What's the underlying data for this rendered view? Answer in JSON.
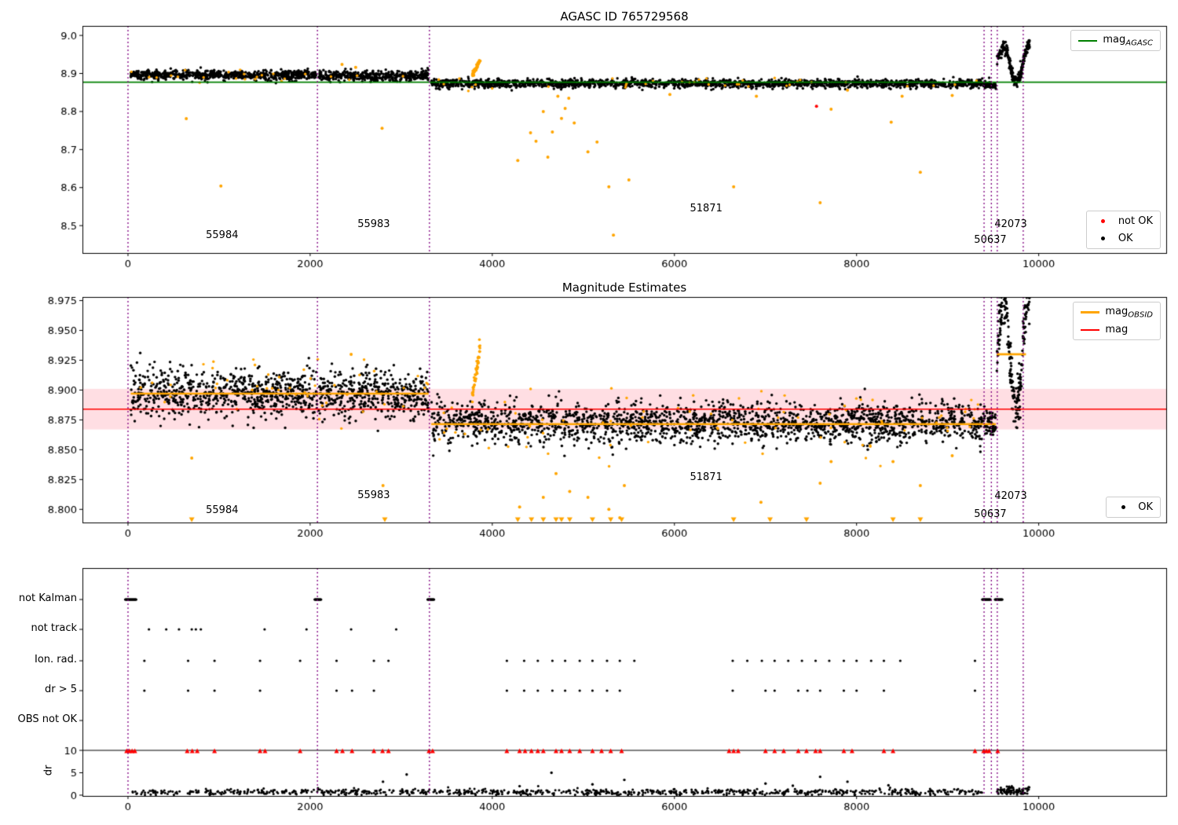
{
  "titles": {
    "top": "AGASC ID 765729568",
    "middle": "Magnitude Estimates"
  },
  "legends": {
    "mag_agasc": {
      "prefix": "mag",
      "sub": "AGASC"
    },
    "ok_notok": {
      "not_ok": "not OK",
      "ok": "OK"
    },
    "mag_obsid": {
      "prefix": "mag",
      "sub": "OBSID",
      "mag": "mag"
    },
    "ok_only": {
      "ok": "OK"
    }
  },
  "colors": {
    "ok": "#000000",
    "not_ok": "#ff0000",
    "flagged": "#ffa500",
    "mag_agasc_line": "#008000",
    "mag_line": "#ff0000",
    "mag_obsid_line": "#ffa500",
    "obsid_boundary": "#800080",
    "mag_band_fill": "rgba(255,0,40,0.13)"
  },
  "obsids": [
    "55984",
    "55983",
    "51871",
    "50637",
    "42073"
  ],
  "chart_data": [
    {
      "type": "scatter",
      "title": "AGASC ID 765729568",
      "xlim": [
        -500,
        11400
      ],
      "ylim": [
        8.428,
        9.025
      ],
      "xticks": [
        0,
        2000,
        4000,
        6000,
        8000,
        10000
      ],
      "yticks": [
        8.5,
        8.6,
        8.7,
        8.8,
        8.9,
        9.0
      ],
      "ytick_decimals": 1,
      "mag_agasc": 8.877,
      "vlines": [
        0,
        2080,
        3310,
        9400,
        9480,
        9545,
        9830
      ],
      "series": {
        "ok_segments": [
          {
            "x0": 30,
            "x1": 2075,
            "n": 700,
            "mean": 8.896,
            "sd": 0.0065
          },
          {
            "x0": 2090,
            "x1": 3300,
            "n": 420,
            "mean": 8.894,
            "sd": 0.0065
          },
          {
            "x0": 3330,
            "x1": 9395,
            "n": 1900,
            "mean": 8.8735,
            "sd": 0.0055
          },
          {
            "x0": 9400,
            "x1": 9530,
            "n": 60,
            "mean": 8.871,
            "sd": 0.005
          },
          {
            "x0": 9540,
            "x1": 9900,
            "n": 220,
            "mean": 8.925,
            "sd": 0.009,
            "wave_amp": 0.045,
            "wave_period": 45
          }
        ],
        "flagged_sprinkle": {
          "x0": 30,
          "x1": 9395,
          "n": 60,
          "sd": 0.009
        },
        "flagged_cluster": {
          "x0": 3780,
          "x1": 3870,
          "n": 45,
          "y0": 8.893,
          "y1": 8.937
        },
        "flagged_outliers": [
          [
            640,
            8.781
          ],
          [
            1020,
            8.604
          ],
          [
            2350,
            8.924
          ],
          [
            2500,
            8.916
          ],
          [
            2790,
            8.756
          ],
          [
            4280,
            8.671
          ],
          [
            4420,
            8.744
          ],
          [
            4480,
            8.722
          ],
          [
            4560,
            8.8
          ],
          [
            4610,
            8.68
          ],
          [
            4660,
            8.746
          ],
          [
            4720,
            8.84
          ],
          [
            4760,
            8.782
          ],
          [
            4800,
            8.808
          ],
          [
            4840,
            8.835
          ],
          [
            4900,
            8.77
          ],
          [
            5050,
            8.694
          ],
          [
            5150,
            8.72
          ],
          [
            5280,
            8.602
          ],
          [
            5330,
            8.475
          ],
          [
            5500,
            8.62
          ],
          [
            5950,
            8.845
          ],
          [
            6650,
            8.602
          ],
          [
            6900,
            8.84
          ],
          [
            7600,
            8.56
          ],
          [
            7720,
            8.806
          ],
          [
            7900,
            8.856
          ],
          [
            8380,
            8.772
          ],
          [
            8500,
            8.84
          ],
          [
            8700,
            8.64
          ],
          [
            9050,
            8.842
          ]
        ],
        "not_ok_points": [
          [
            7560,
            8.814
          ]
        ]
      },
      "annotations": [
        {
          "text": "55984",
          "x": 855,
          "y": 8.465
        },
        {
          "text": "55983",
          "x": 2520,
          "y": 8.494
        },
        {
          "text": "51871",
          "x": 6170,
          "y": 8.535
        },
        {
          "text": "50637",
          "x": 9290,
          "y": 8.452
        },
        {
          "text": "42073",
          "x": 9515,
          "y": 8.494
        }
      ]
    },
    {
      "type": "scatter",
      "title": "Magnitude Estimates",
      "xlim": [
        -500,
        11400
      ],
      "ylim": [
        8.789,
        8.978
      ],
      "xticks": [
        0,
        2000,
        4000,
        6000,
        8000,
        10000
      ],
      "yticks": [
        8.8,
        8.825,
        8.85,
        8.875,
        8.9,
        8.925,
        8.95,
        8.975
      ],
      "ytick_decimals": 3,
      "mag": 8.884,
      "mag_band": [
        8.867,
        8.901
      ],
      "obsid_lines": [
        {
          "x0": 30,
          "x1": 3300,
          "y": 8.897
        },
        {
          "x0": 3330,
          "x1": 9530,
          "y": 8.8715
        },
        {
          "x0": 9540,
          "x1": 9860,
          "y": 8.93
        }
      ],
      "vlines": [
        0,
        2080,
        3310,
        9400,
        9480,
        9545,
        9830
      ],
      "series": {
        "ok_segments": [
          {
            "x0": 30,
            "x1": 2075,
            "n": 700,
            "mean": 8.897,
            "sd": 0.01
          },
          {
            "x0": 2090,
            "x1": 3300,
            "n": 420,
            "mean": 8.896,
            "sd": 0.01
          },
          {
            "x0": 3330,
            "x1": 9395,
            "n": 1900,
            "mean": 8.872,
            "sd": 0.0085
          },
          {
            "x0": 9400,
            "x1": 9530,
            "n": 60,
            "mean": 8.872,
            "sd": 0.006
          },
          {
            "x0": 9540,
            "x1": 9900,
            "n": 220,
            "mean": 8.93,
            "sd": 0.01,
            "wave_amp": 0.045,
            "wave_period": 45
          }
        ],
        "flagged_sprinkle": {
          "x0": 30,
          "x1": 9395,
          "n": 130,
          "sd": 0.013
        },
        "flagged_cluster": {
          "x0": 3780,
          "x1": 3870,
          "n": 45,
          "y0": 8.895,
          "y1": 8.937
        },
        "flagged_outliers": [
          [
            700,
            8.843
          ],
          [
            2450,
            8.93
          ],
          [
            2800,
            8.82
          ],
          [
            4300,
            8.802
          ],
          [
            4560,
            8.81
          ],
          [
            4700,
            8.83
          ],
          [
            4850,
            8.815
          ],
          [
            5050,
            8.81
          ],
          [
            5280,
            8.8
          ],
          [
            5400,
            8.793
          ],
          [
            5450,
            8.82
          ],
          [
            6950,
            8.806
          ],
          [
            7600,
            8.822
          ],
          [
            7720,
            8.84
          ],
          [
            8400,
            8.84
          ],
          [
            8700,
            8.82
          ],
          [
            9050,
            8.845
          ]
        ],
        "clipped_low_x": [
          700,
          2820,
          4280,
          4430,
          4560,
          4700,
          4760,
          4850,
          5100,
          5300,
          5420,
          6650,
          7050,
          7450,
          8400,
          8700
        ],
        "not_ok_points": []
      },
      "annotations": [
        {
          "text": "55984",
          "x": 855,
          "y": 8.796
        },
        {
          "text": "55983",
          "x": 2520,
          "y": 8.809
        },
        {
          "text": "51871",
          "x": 6170,
          "y": 8.824
        },
        {
          "text": "50637",
          "x": 9290,
          "y": 8.793
        },
        {
          "text": "42073",
          "x": 9515,
          "y": 8.808
        }
      ]
    },
    {
      "type": "scatter",
      "title": "",
      "xlim": [
        -500,
        11400
      ],
      "xticks": [
        0,
        2000,
        4000,
        6000,
        8000,
        10000
      ],
      "rows": [
        {
          "label": "not Kalman",
          "clusters": [
            [
              -30,
              90
            ],
            [
              2050,
              2120
            ],
            [
              3290,
              3360
            ],
            [
              9380,
              9470
            ],
            [
              9520,
              9600
            ]
          ],
          "x": []
        },
        {
          "label": "not track",
          "x": [
            230,
            420,
            560,
            700,
            745,
            800,
            1500,
            1960,
            2450,
            2945
          ]
        },
        {
          "label": "Ion. rad.",
          "x": [
            180,
            660,
            950,
            1450,
            1890,
            2290,
            2700,
            2860,
            4160,
            4350,
            4500,
            4660,
            4800,
            4960,
            5100,
            5260,
            5400,
            5560,
            6640,
            6800,
            6960,
            7100,
            7250,
            7400,
            7550,
            7700,
            7860,
            8000,
            8160,
            8300,
            8480,
            9300
          ]
        },
        {
          "label": "dr > 5",
          "x": [
            180,
            660,
            950,
            1450,
            2290,
            2460,
            2700,
            4160,
            4350,
            4500,
            4660,
            4800,
            4960,
            5100,
            5260,
            5400,
            6640,
            7000,
            7100,
            7360,
            7460,
            7600,
            7860,
            8000,
            8300,
            9300
          ]
        },
        {
          "label": "OBS not OK",
          "x": []
        }
      ],
      "dr": {
        "ylabel": "dr",
        "yticks": [
          0,
          5,
          10
        ],
        "clip_line": 10,
        "base": {
          "x0": 30,
          "x1": 9395,
          "n": 800,
          "mean": 0.7,
          "sd": 0.35
        },
        "end_cluster": {
          "x0": 9540,
          "x1": 9900,
          "n": 80,
          "mean": 1.0,
          "sd": 0.5
        },
        "spikes": [
          [
            2800,
            3.0
          ],
          [
            3060,
            4.6
          ],
          [
            4300,
            2.0
          ],
          [
            4650,
            5.0
          ],
          [
            5100,
            2.4
          ],
          [
            5450,
            3.4
          ],
          [
            7000,
            2.6
          ],
          [
            7300,
            2.1
          ],
          [
            7600,
            4.1
          ],
          [
            7900,
            3.0
          ],
          [
            8350,
            2.2
          ]
        ],
        "clipped_x": [
          -15,
          15,
          45,
          75,
          650,
          705,
          760,
          950,
          1450,
          1505,
          1890,
          2290,
          2355,
          2460,
          2700,
          2795,
          2860,
          3305,
          3345,
          4160,
          4300,
          4360,
          4430,
          4500,
          4560,
          4700,
          4760,
          4850,
          4960,
          5100,
          5200,
          5300,
          5420,
          6600,
          6650,
          6700,
          7000,
          7100,
          7200,
          7360,
          7450,
          7550,
          7600,
          7860,
          7950,
          8300,
          8400,
          9300,
          9395,
          9425,
          9455,
          9550
        ]
      },
      "vlines": [
        0,
        2080,
        3310,
        9400,
        9480,
        9545,
        9830
      ]
    }
  ]
}
